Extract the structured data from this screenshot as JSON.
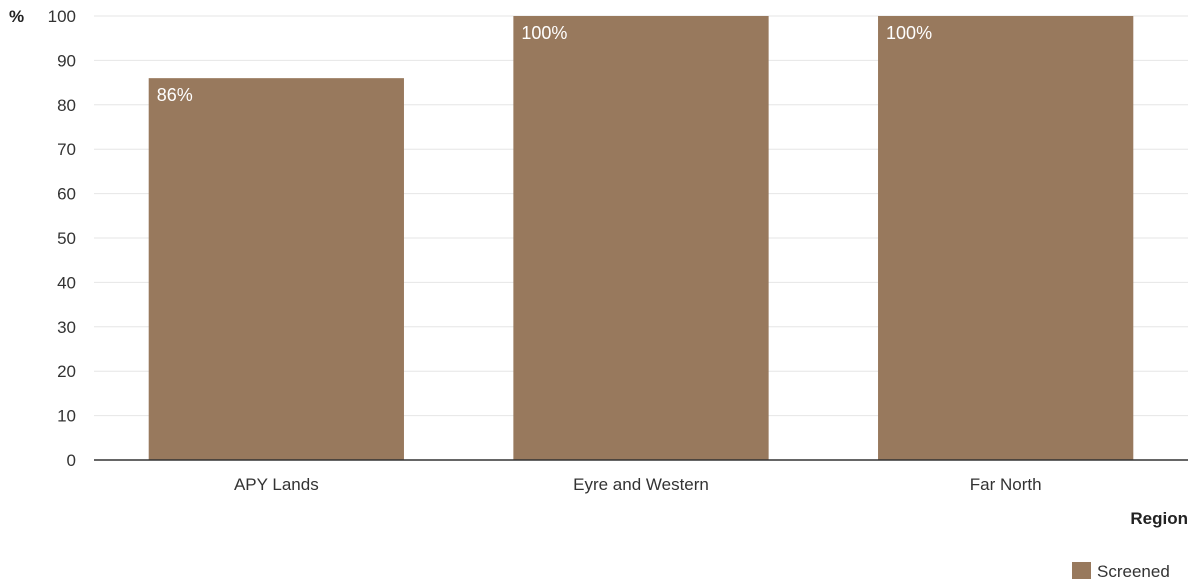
{
  "chart_data": {
    "type": "bar",
    "title": "",
    "xlabel": "Region",
    "ylabel": "%",
    "categories": [
      "APY Lands",
      "Eyre and Western",
      "Far North"
    ],
    "series": [
      {
        "name": "Screened",
        "values": [
          86,
          100,
          100
        ],
        "labels": [
          "86%",
          "100%",
          "100%"
        ],
        "color": "#98795d"
      }
    ],
    "ylim": [
      0,
      100
    ],
    "yticks": [
      0,
      10,
      20,
      30,
      40,
      50,
      60,
      70,
      80,
      90,
      100
    ],
    "grid": true,
    "legend_position": "bottom-right"
  },
  "colors": {
    "bar": "#98795d",
    "grid": "#e6e6e6",
    "axis": "#333333"
  }
}
